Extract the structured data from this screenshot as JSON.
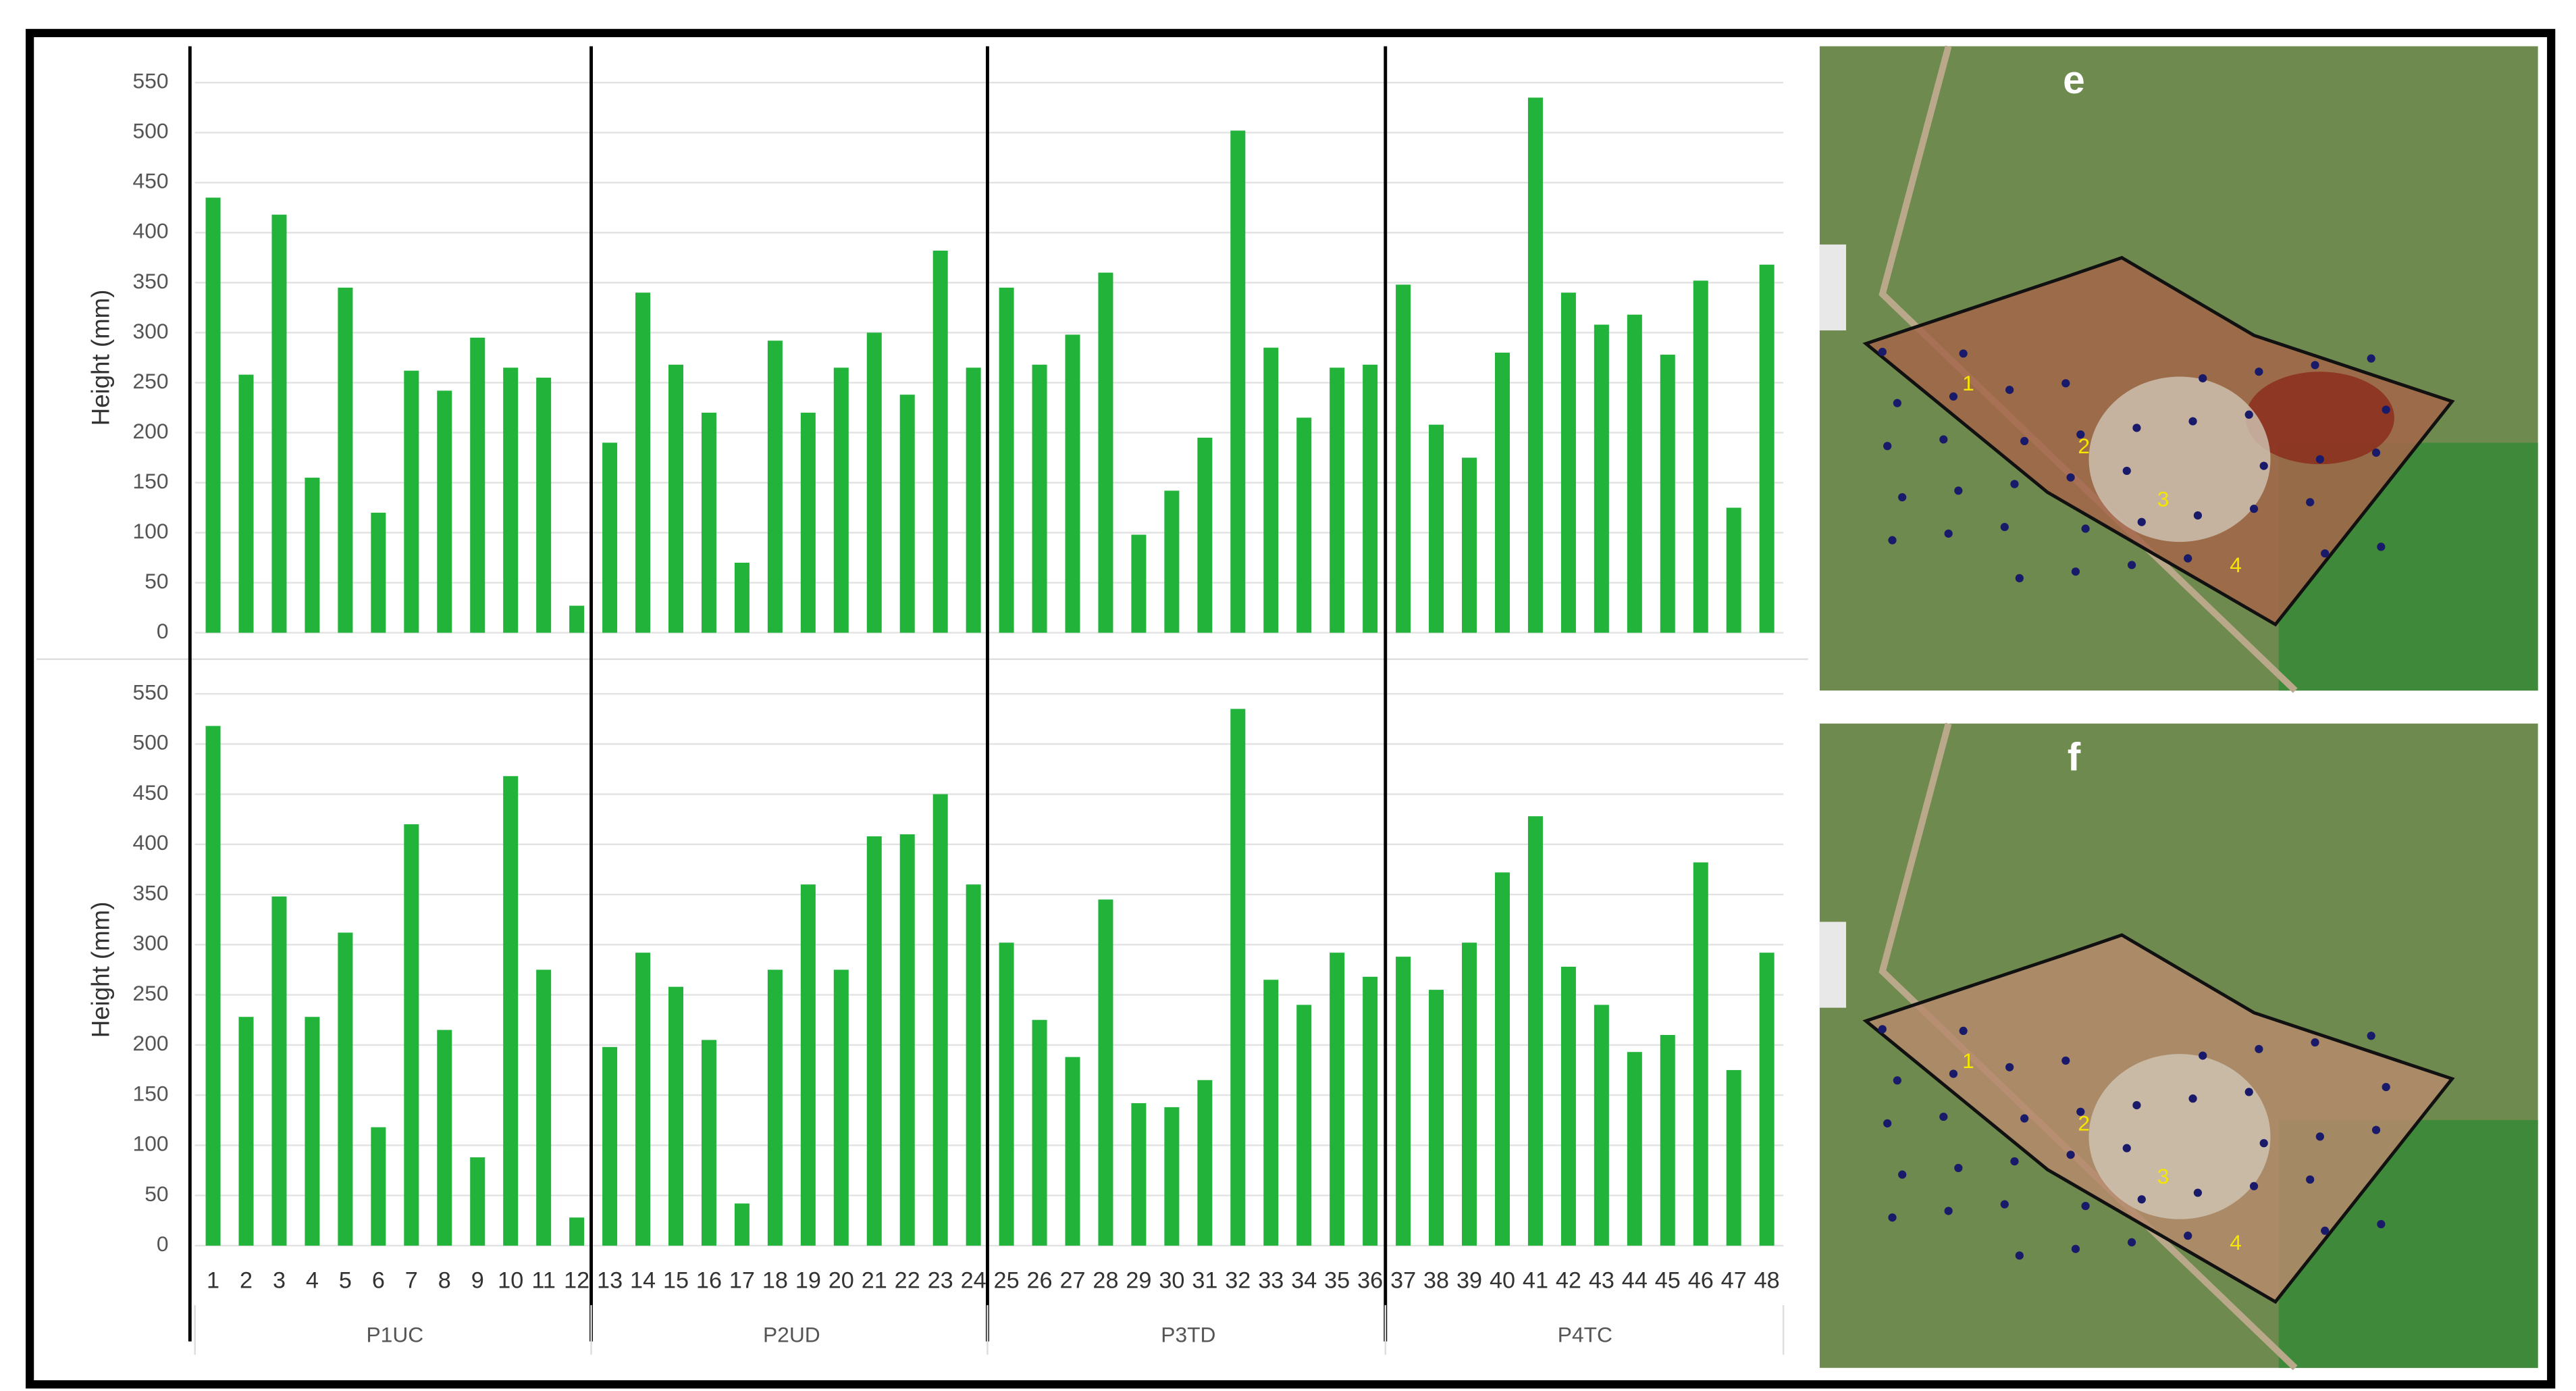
{
  "chart_data": [
    {
      "type": "bar",
      "y_label": "Height (mm)",
      "color": "#22b33a",
      "ylim": [
        0,
        550
      ],
      "yticks": [
        0,
        50,
        100,
        150,
        200,
        250,
        300,
        350,
        400,
        450,
        500,
        550
      ],
      "grid": true,
      "values": [
        435,
        258,
        418,
        155,
        345,
        120,
        262,
        242,
        295,
        265,
        255,
        27,
        190,
        340,
        268,
        220,
        70,
        292,
        220,
        265,
        300,
        238,
        382,
        265,
        345,
        268,
        298,
        360,
        98,
        142,
        195,
        502,
        285,
        215,
        265,
        268,
        348,
        208,
        175,
        280,
        535,
        340,
        308,
        318,
        278,
        352,
        125,
        368
      ]
    },
    {
      "type": "bar",
      "y_label": "Height (mm)",
      "color": "#22b33a",
      "ylim": [
        0,
        550
      ],
      "yticks": [
        0,
        50,
        100,
        150,
        200,
        250,
        300,
        350,
        400,
        450,
        500,
        550
      ],
      "grid": true,
      "categories": [
        "1",
        "2",
        "3",
        "4",
        "5",
        "6",
        "7",
        "8",
        "9",
        "10",
        "11",
        "12",
        "13",
        "14",
        "15",
        "16",
        "17",
        "18",
        "19",
        "20",
        "21",
        "22",
        "23",
        "24",
        "25",
        "26",
        "27",
        "28",
        "29",
        "30",
        "31",
        "32",
        "33",
        "34",
        "35",
        "36",
        "37",
        "38",
        "39",
        "40",
        "41",
        "42",
        "43",
        "44",
        "45",
        "46",
        "47",
        "48"
      ],
      "groups": [
        "P1UC",
        "P2UD",
        "P3TD",
        "P4TC"
      ],
      "values": [
        518,
        228,
        348,
        228,
        312,
        118,
        420,
        215,
        88,
        468,
        275,
        28,
        198,
        292,
        258,
        205,
        42,
        275,
        360,
        275,
        408,
        410,
        450,
        360,
        302,
        225,
        188,
        345,
        142,
        138,
        165,
        535,
        265,
        240,
        292,
        268,
        288,
        255,
        302,
        372,
        428,
        278,
        240,
        193,
        210,
        382,
        175,
        292
      ]
    }
  ],
  "maps": [
    {
      "label": "e",
      "zones": [
        "1",
        "2",
        "3",
        "4"
      ]
    },
    {
      "label": "f",
      "zones": [
        "1",
        "2",
        "3",
        "4"
      ]
    }
  ]
}
